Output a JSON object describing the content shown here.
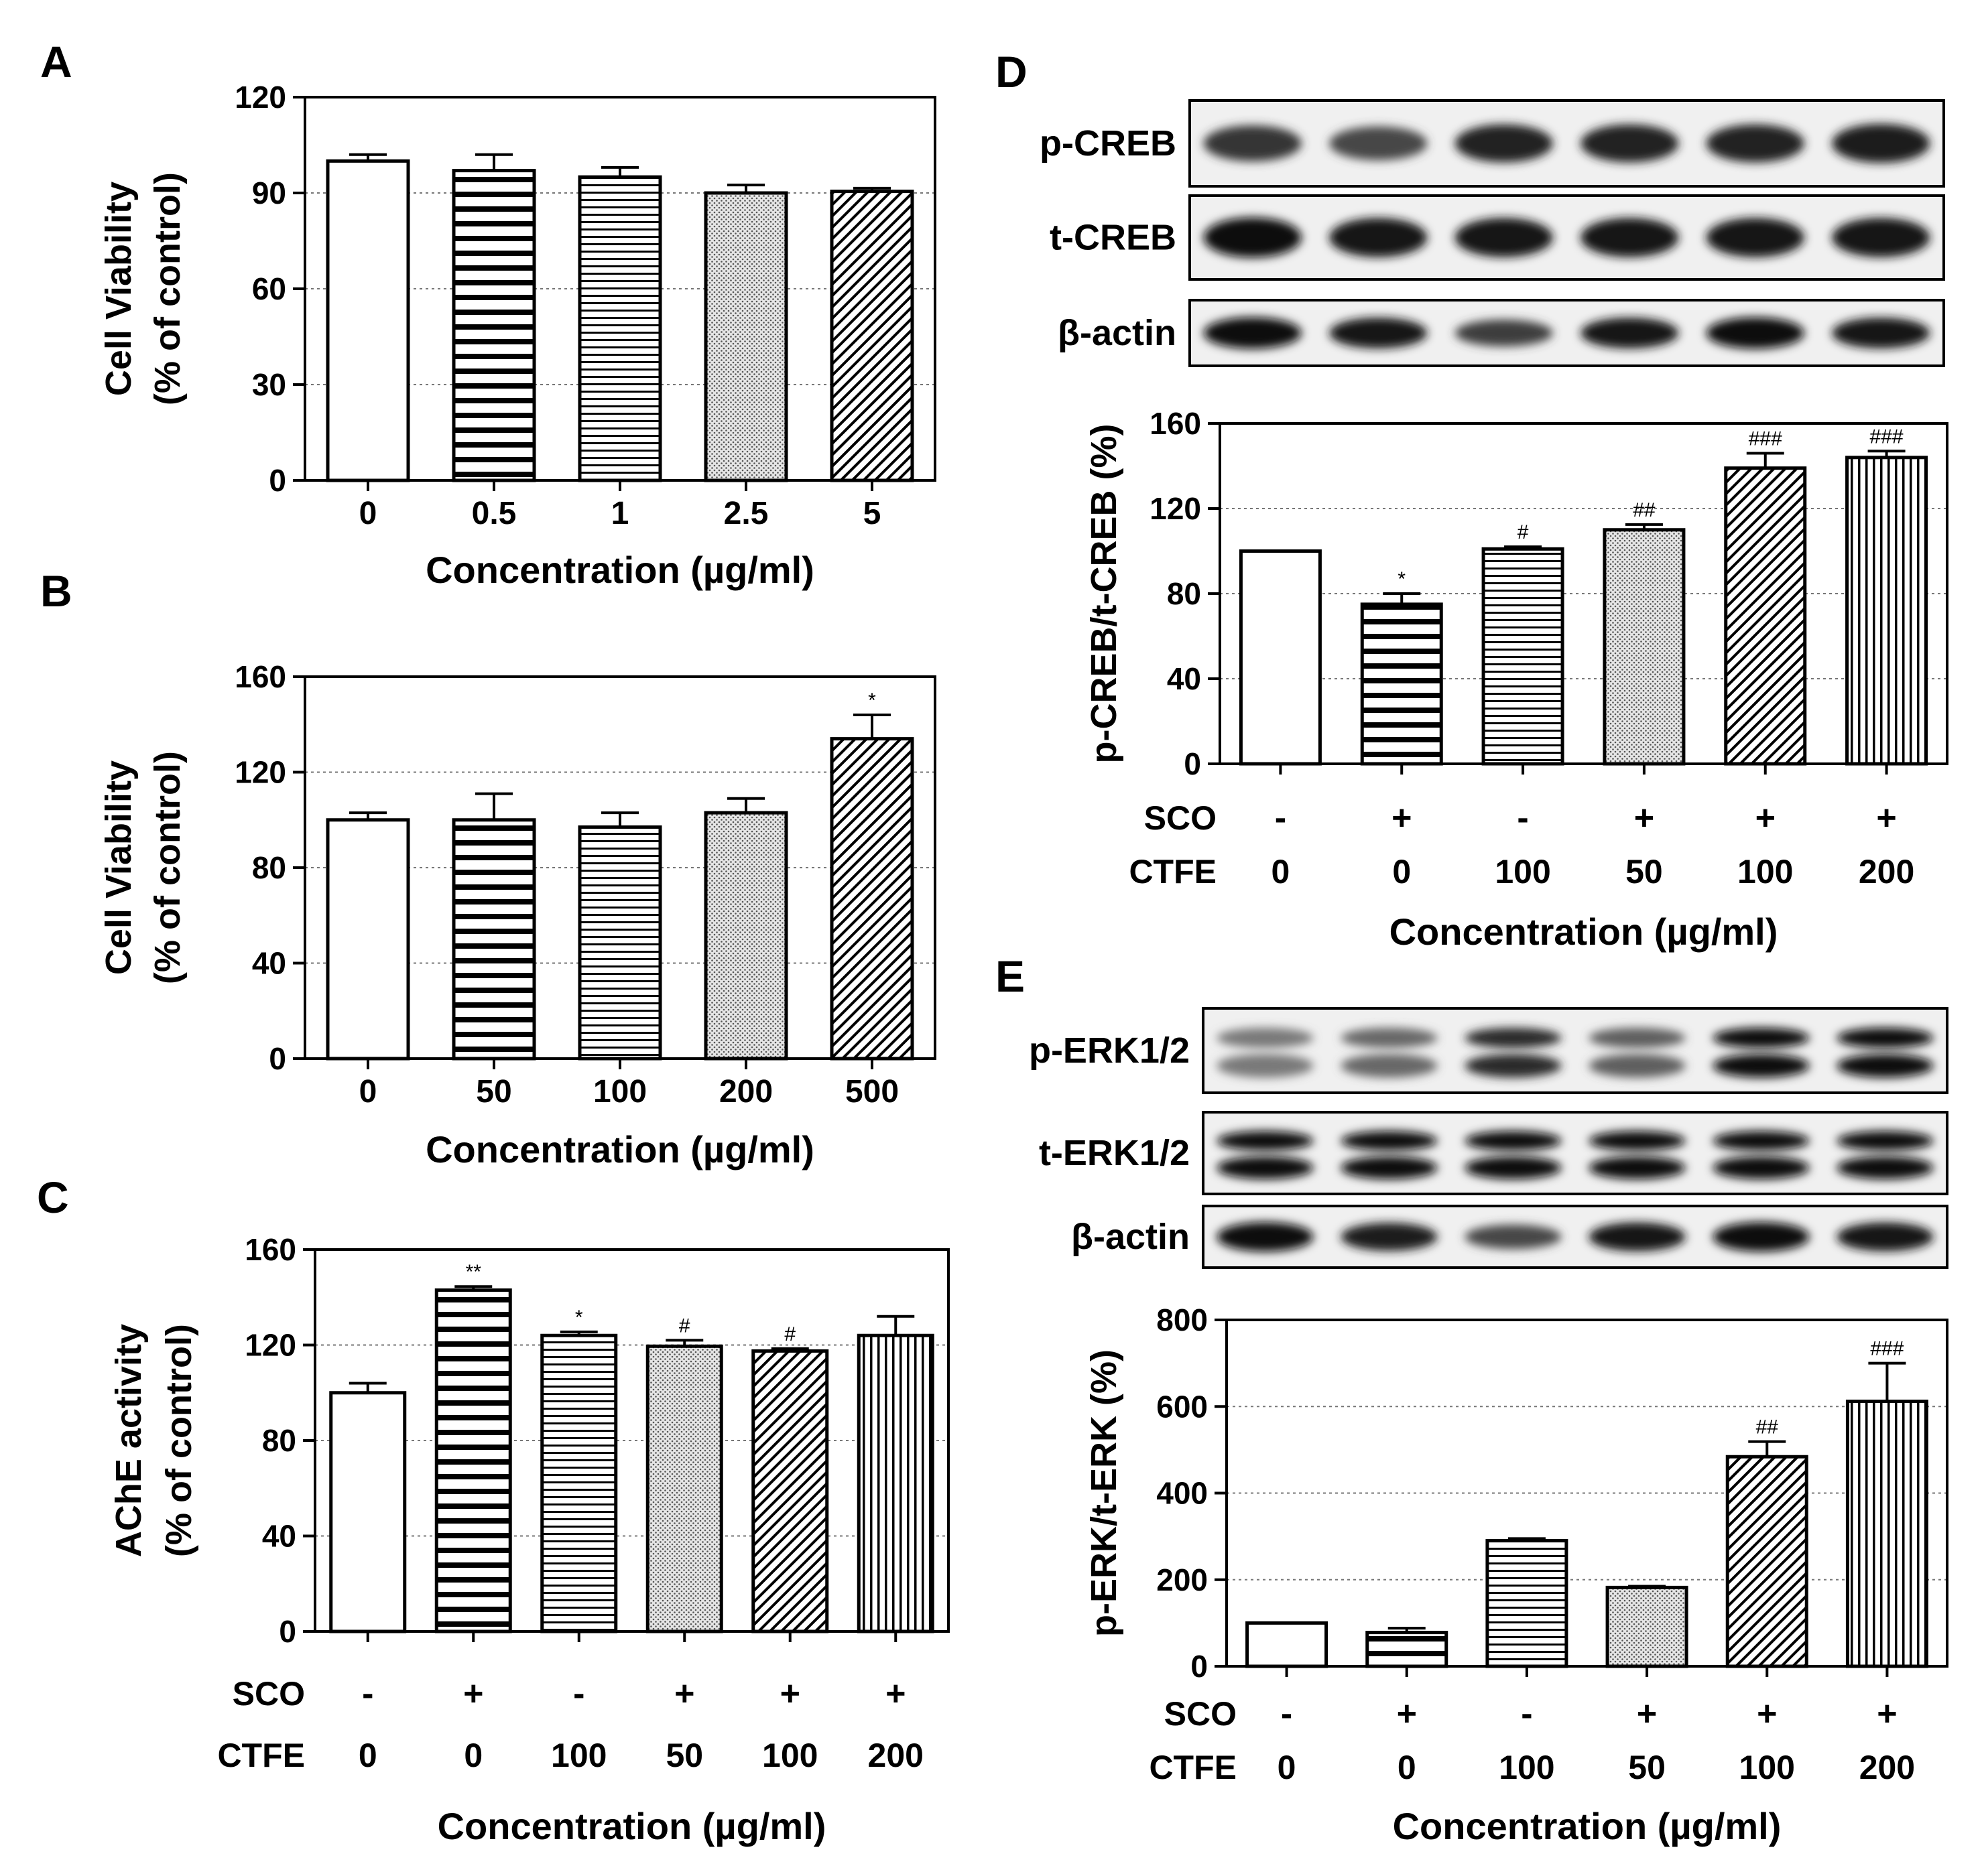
{
  "colors": {
    "ink": "#000000",
    "grid": "#777777",
    "paper": "#ffffff",
    "blot_bg": "#f0f0f0"
  },
  "chart_data": [
    {
      "id": "A",
      "type": "bar",
      "panel_label": "A",
      "ylabel_line1": "Cell Viability",
      "ylabel_line2": "(% of control)",
      "xlabel": "Concentration (µg/ml)",
      "categories": [
        "0",
        "0.5",
        "1",
        "2.5",
        "5"
      ],
      "values": [
        100,
        97,
        95,
        90,
        90.5
      ],
      "errors": [
        2,
        5,
        3,
        2.5,
        1
      ],
      "patterns": [
        "white",
        "hlines",
        "hlines-fine",
        "dots",
        "diag"
      ],
      "annotations": [
        "",
        "",
        "",
        "",
        ""
      ],
      "ylim": [
        0,
        120
      ],
      "yticks": [
        0,
        30,
        60,
        90,
        120
      ],
      "grid": [
        30,
        60,
        90
      ]
    },
    {
      "id": "B",
      "type": "bar",
      "panel_label": "B",
      "ylabel_line1": "Cell Viability",
      "ylabel_line2": "(% of control)",
      "xlabel": "Concentration (µg/ml)",
      "categories": [
        "0",
        "50",
        "100",
        "200",
        "500"
      ],
      "values": [
        100,
        100,
        97,
        103,
        134
      ],
      "errors": [
        3,
        11,
        6,
        6,
        10
      ],
      "patterns": [
        "white",
        "hlines",
        "hlines-fine",
        "dots",
        "diag"
      ],
      "annotations": [
        "",
        "",
        "",
        "",
        "*"
      ],
      "ylim": [
        0,
        160
      ],
      "yticks": [
        0,
        40,
        80,
        120,
        160
      ],
      "grid": [
        40,
        80,
        120
      ]
    },
    {
      "id": "C",
      "type": "bar",
      "panel_label": "C",
      "ylabel_line1": "AChE activity",
      "ylabel_line2": "(% of control)",
      "xlabel": "Concentration (µg/ml)",
      "row1_label": "SCO",
      "row1": [
        "-",
        "+",
        "-",
        "+",
        "+",
        "+"
      ],
      "row2_label": "CTFE",
      "row2": [
        "0",
        "0",
        "100",
        "50",
        "100",
        "200"
      ],
      "values": [
        100,
        143,
        124,
        119.5,
        117.5,
        124
      ],
      "errors": [
        4,
        1.5,
        1.5,
        2.5,
        1,
        8
      ],
      "patterns": [
        "white",
        "hlines",
        "hlines-fine",
        "dots",
        "diag",
        "vlines"
      ],
      "annotations": [
        "",
        "**",
        "*",
        "#",
        "#",
        ""
      ],
      "ylim": [
        0,
        160
      ],
      "yticks": [
        0,
        40,
        80,
        120,
        160
      ],
      "grid": [
        40,
        80,
        120
      ]
    },
    {
      "id": "D",
      "type": "bar",
      "panel_label": "D",
      "ylabel_line1": "p-CREB/t-CREB (%)",
      "xlabel": "Concentration (µg/ml)",
      "row1_label": "SCO",
      "row1": [
        "-",
        "+",
        "-",
        "+",
        "+",
        "+"
      ],
      "row2_label": "CTFE",
      "row2": [
        "0",
        "0",
        "100",
        "50",
        "100",
        "200"
      ],
      "values": [
        100,
        75,
        101,
        110,
        139,
        144
      ],
      "errors": [
        0,
        5,
        1,
        2.5,
        7,
        3
      ],
      "patterns": [
        "white",
        "hlines",
        "hlines-fine",
        "dots",
        "diag",
        "vlines"
      ],
      "annotations": [
        "",
        "*",
        "#",
        "##",
        "###",
        "###"
      ],
      "ylim": [
        0,
        160
      ],
      "yticks": [
        0,
        40,
        80,
        120,
        160
      ],
      "grid": [
        40,
        80,
        120
      ]
    },
    {
      "id": "E",
      "type": "bar",
      "panel_label": "E",
      "ylabel_line1": "p-ERK/t-ERK (%)",
      "xlabel": "Concentration (µg/ml)",
      "row1_label": "SCO",
      "row1": [
        "-",
        "+",
        "-",
        "+",
        "+",
        "+"
      ],
      "row2_label": "CTFE",
      "row2": [
        "0",
        "0",
        "100",
        "50",
        "100",
        "200"
      ],
      "values": [
        100,
        78,
        290,
        182,
        484,
        612
      ],
      "errors": [
        0,
        10,
        5,
        3,
        35,
        88
      ],
      "patterns": [
        "white",
        "hlines",
        "hlines-fine",
        "dots",
        "diag",
        "vlines"
      ],
      "annotations": [
        "",
        "",
        "",
        "",
        "##",
        "###"
      ],
      "ylim": [
        0,
        800
      ],
      "yticks": [
        0,
        200,
        400,
        600,
        800
      ],
      "grid": [
        200,
        400,
        600
      ]
    }
  ],
  "blots_d": [
    {
      "label": "p-CREB",
      "bands": [
        0.75,
        0.65,
        0.85,
        0.85,
        0.85,
        0.9
      ]
    },
    {
      "label": "t-CREB",
      "bands": [
        1,
        0.95,
        0.95,
        0.95,
        0.95,
        0.95
      ]
    },
    {
      "label": "β-actin",
      "bands": [
        1,
        0.95,
        0.7,
        0.95,
        1,
        0.95
      ]
    }
  ],
  "blots_e": [
    {
      "label": "p-ERK1/2",
      "double": true,
      "bands": [
        0.35,
        0.45,
        0.8,
        0.5,
        1,
        1
      ]
    },
    {
      "label": "t-ERK1/2",
      "double": true,
      "bands": [
        1,
        1,
        1,
        1,
        1,
        1
      ]
    },
    {
      "label": "β-actin",
      "double": false,
      "bands": [
        1,
        0.9,
        0.65,
        0.95,
        1,
        0.95
      ]
    }
  ]
}
